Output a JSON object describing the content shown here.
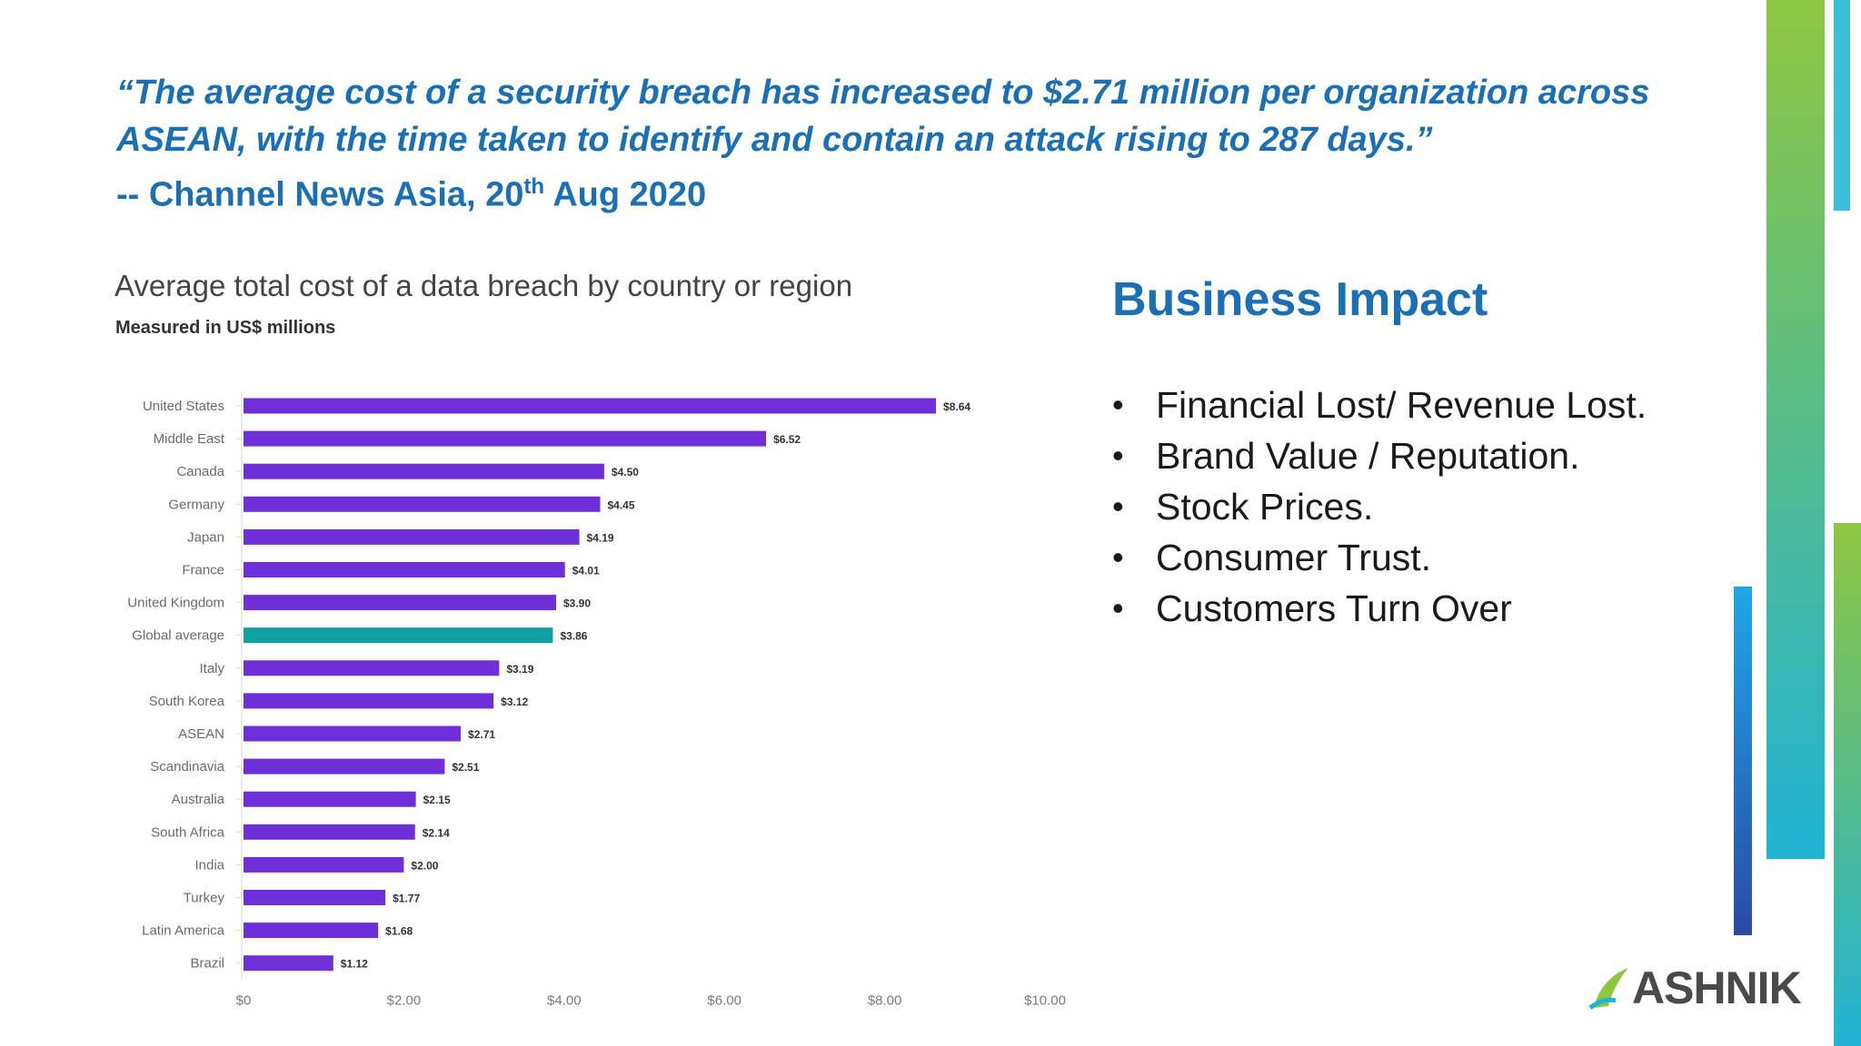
{
  "quote": {
    "text": "“The average cost of a security breach has increased to $2.71 million per organization across ASEAN, with the time taken to identify and contain an attack rising to 287 days.”",
    "source_prefix": "-- Channel News Asia, 20",
    "source_sup": "th",
    "source_suffix": " Aug 2020"
  },
  "chart_data": {
    "type": "bar",
    "orientation": "horizontal",
    "title": "Average total cost of a data breach by country or region",
    "subtitle": "Measured in US$ millions",
    "categories": [
      "United States",
      "Middle East",
      "Canada",
      "Germany",
      "Japan",
      "France",
      "United Kingdom",
      "Global average",
      "Italy",
      "South Korea",
      "ASEAN",
      "Scandinavia",
      "Australia",
      "South Africa",
      "India",
      "Turkey",
      "Latin America",
      "Brazil"
    ],
    "values": [
      8.64,
      6.52,
      4.5,
      4.45,
      4.19,
      4.01,
      3.9,
      3.86,
      3.19,
      3.12,
      2.71,
      2.51,
      2.15,
      2.14,
      2.0,
      1.77,
      1.68,
      1.12
    ],
    "value_labels": [
      "$8.64",
      "$6.52",
      "$4.50",
      "$4.45",
      "$4.19",
      "$4.01",
      "$3.90",
      "$3.86",
      "$3.19",
      "$3.12",
      "$2.71",
      "$2.51",
      "$2.15",
      "$2.14",
      "$2.00",
      "$1.77",
      "$1.68",
      "$1.12"
    ],
    "highlight_category": "Global average",
    "bar_color": "#6f2fd8",
    "highlight_color": "#10a0a0",
    "xlim": [
      0,
      10
    ],
    "xticks": [
      0,
      2,
      4,
      6,
      8,
      10
    ],
    "xtick_labels": [
      "$0",
      "$2.00",
      "$4.00",
      "$6.00",
      "$8.00",
      "$10.00"
    ],
    "xlabel": "",
    "ylabel": ""
  },
  "impact": {
    "title": "Business Impact",
    "items": [
      "Financial Lost/ Revenue Lost.",
      "Brand Value / Reputation.",
      "Stock Prices.",
      "Consumer Trust.",
      "Customers Turn Over"
    ]
  },
  "logo": {
    "text": "ASHNIK"
  }
}
